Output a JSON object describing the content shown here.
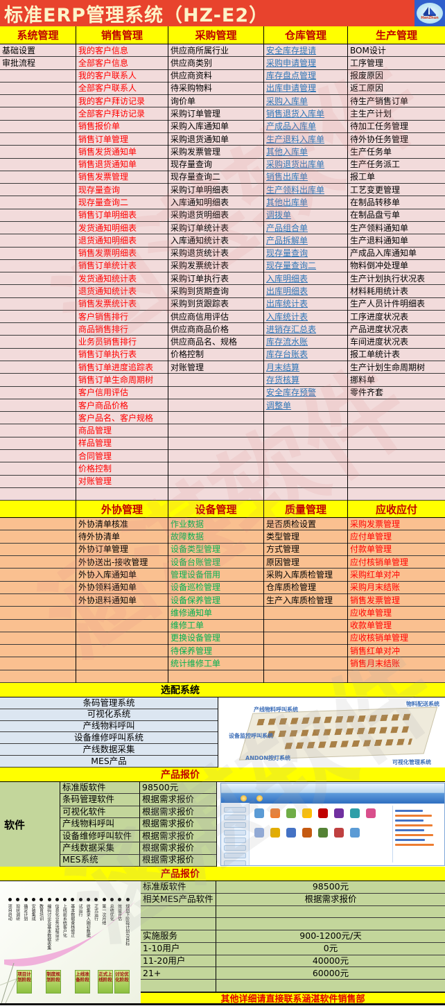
{
  "title_bar": {
    "title": "标准ERP管理系统（HZ-E2）",
    "logo_text": "HanZhun"
  },
  "colors": {
    "title_bar_bg": "#E8432D",
    "band_yellow": "#FFFF00",
    "header_text_red": "#C00000",
    "section1_bg": "#F2DBDB",
    "section2_bg": "#FAC090",
    "optional_bg": "#DCE6F1",
    "pricing_bg": "#C3D69B",
    "red_item": "#FF0000",
    "blue_link": "#2E75B6",
    "green_item": "#00B050"
  },
  "watermark": "涵湛软件",
  "main_modules": {
    "headers": [
      "系统管理",
      "销售管理",
      "采购管理",
      "仓库管理",
      "生产管理"
    ],
    "columns": [
      {
        "key": "system",
        "color": "black",
        "items": [
          "基础设置",
          "审批流程"
        ]
      },
      {
        "key": "sales",
        "color": "red",
        "items": [
          "我的客户信息",
          "全部客户信息",
          "我的客户联系人",
          "全部客户联系人",
          "我的客户拜访记录",
          "全部客户拜访记录",
          "销售报价单",
          "销售订单管理",
          "销售发货通知单",
          "销售退货通知单",
          "销售发票管理",
          "现存量查询",
          "现存量查询二",
          "销售订单明细表",
          "发货通知明细表",
          "退货通知明细表",
          "销售发票明细表",
          "销售订单统计表",
          "发货通知统计表",
          "退货通知统计表",
          "销售发票统计表",
          "客户销售排行",
          "商品销售排行",
          "业务员销售排行",
          "销售订单执行表",
          "销售订单进度追踪表",
          "销售订单生命周期树",
          "客户信用评估",
          "客户商品价格",
          "客户品名、客户规格",
          "商品管理",
          "样品管理",
          "合同管理",
          "价格控制",
          "对账管理"
        ]
      },
      {
        "key": "purchase",
        "color": "black",
        "items": [
          "供应商所属行业",
          "供应商类别",
          "供应商资料",
          "待采购物料",
          "询价单",
          "采购订单管理",
          "采购入库通知单",
          "采购退货通知单",
          "采购发票管理",
          "现存量查询",
          "现存量查询二",
          "采购订单明细表",
          "入库通知明细表",
          "采购退货明细表",
          "采购订单统计表",
          "入库通知统计表",
          "采购退货统计表",
          "采购发票统计表",
          "采购订单执行表",
          "采购到货期查询",
          "采购到货跟踪表",
          "供应商信用评估",
          "供应商商品价格",
          "供应商品名、规格",
          "价格控制",
          "对账管理"
        ]
      },
      {
        "key": "warehouse",
        "color": "blue",
        "items": [
          "安全库存提请",
          "采购申请管理",
          "库存盘点管理",
          "出库申请管理",
          "采购入库单",
          "销售退货入库单",
          "产成品入库单",
          "生产退料入库单",
          "其他入库单",
          "采购退货出库单",
          "销售出库单",
          "生产领料出库单",
          "其他出库单",
          "调拨单",
          "产品组合单",
          "产品拆解单",
          "现存量查询",
          "现存量查询二",
          "入库明细表",
          "出库明细表",
          "出库统计表",
          "入库统计表",
          "进销存汇总表",
          "库存流水账",
          "库存台账表",
          "月末结算",
          "存货核算",
          "安全库存预警",
          "调整单"
        ]
      },
      {
        "key": "production",
        "color": "black",
        "items": [
          "BOM设计",
          "工序管理",
          "报废原因",
          "返工原因",
          "待生产销售订单",
          "主生产计划",
          "待加工任务管理",
          "待外协任务管理",
          "生产任务单",
          "生产任务派工",
          "报工单",
          "工艺变更管理",
          "在制品转移单",
          "在制品盘亏单",
          "生产领料通知单",
          "生产退料通知单",
          "产成品入库通知单",
          "物料倒冲处理单",
          "生产计划执行状况表",
          "材料耗用统计表",
          "生产人员计件明细表",
          "工序进度状况表",
          "产品进度状况表",
          "车间进度状况表",
          "报工单统计表",
          "生产计划生命周期树",
          "挪料单",
          "零件齐套"
        ]
      }
    ]
  },
  "secondary_modules": {
    "headers": [
      "外协管理",
      "设备管理",
      "质量管理",
      "应收应付"
    ],
    "columns": [
      {
        "key": "spacer",
        "color": "black",
        "items": []
      },
      {
        "key": "outsourcing",
        "color": "black",
        "items": [
          "外协清单核准",
          "待外协清单",
          "外协订单管理",
          "外协送出-接收管理",
          "外协入库通知单",
          "外协领料通知单",
          "外协退料通知单"
        ]
      },
      {
        "key": "equipment",
        "color": "green",
        "items": [
          "作业数据",
          "故障数据",
          "设备类型管理",
          "设备台账管理",
          "管理设备借用",
          "设备巡检管理",
          "设备保养管理",
          "维修通知单",
          "维修工单",
          "更换设备管理",
          "待保养管理",
          "统计维修工单"
        ]
      },
      {
        "key": "quality",
        "color": "black",
        "items": [
          "是否质检设置",
          "类型管理",
          "方式管理",
          "原因管理",
          "采购入库质检管理",
          "仓库质检管理",
          "生产入库质检管理"
        ]
      },
      {
        "key": "ar-ap",
        "color": "red",
        "items": [
          "采购发票管理",
          "应付单管理",
          "付款单管理",
          "应付核销单管理",
          "采购红单对冲",
          "采购月末结账",
          "销售发票管理",
          "应收单管理",
          "收款单管理",
          "应收核销单管理",
          "销售红单对冲",
          "销售月末结账"
        ]
      }
    ]
  },
  "optional_systems": {
    "header": "选配系统",
    "items": [
      "条码管理系统",
      "可视化系统",
      "产线物料呼叫",
      "设备维修呼叫系统",
      "产线数据采集",
      "MES产品"
    ],
    "diagram_labels": [
      "产线物料呼叫系统",
      "物料配送系统",
      "设备监控呼叫系统",
      "ANDON按灯系统",
      "可视化管理系统"
    ]
  },
  "pricing1": {
    "header": "产品报价",
    "category": "软件",
    "rows": [
      [
        "标准版软件",
        "98500元"
      ],
      [
        "条码管理软件",
        "根据需求报价"
      ],
      [
        "可视化软件",
        "根据需求报价"
      ],
      [
        "产线物料呼叫",
        "根据需求报价"
      ],
      [
        "设备维修呼叫软件",
        "根据需求报价"
      ],
      [
        "产线数据采集",
        "根据需求报价"
      ],
      [
        "MES系统",
        "根据需求报价"
      ]
    ]
  },
  "pricing2": {
    "header": "产品报价",
    "rows": [
      [
        "标准版软件",
        "98500元"
      ],
      [
        "相关MES产品软件",
        "根据需求报价"
      ],
      [
        "",
        ""
      ],
      [
        "",
        ""
      ],
      [
        "实施服务",
        "900-1200元/天"
      ],
      [
        "1-10用户",
        "0元"
      ],
      [
        "11-20用户",
        "40000元"
      ],
      [
        "21+",
        "60000元"
      ],
      [
        "",
        ""
      ]
    ],
    "footer": "其他详细请直接联系涵湛软件销售部"
  },
  "roadmap": {
    "milestones": [
      "项目启动",
      "现状调研",
      "确定计划",
      "安装集成",
      "教育培训",
      "编码讨论及基本数据收集",
      "信息化业务流程设计",
      "上线前系统客户化",
      "基本数据查核修正",
      "试运行",
      "收集录入期初数据",
      "正式运行",
      "第一次月结",
      "总结优化",
      "效益评估",
      "规划下阶段计划与目标"
    ],
    "stages": [
      "项目计划阶段",
      "制度规划阶段",
      "上线准备阶段",
      "正式上线阶段",
      "讨论优化阶段"
    ]
  }
}
